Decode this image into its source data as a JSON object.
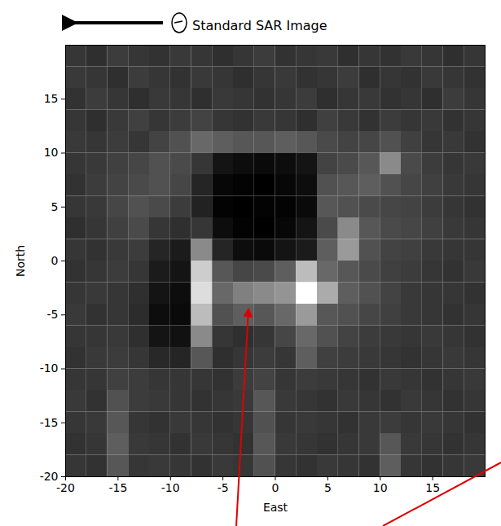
{
  "chart_data": {
    "type": "heatmap",
    "title": "Standard SAR Image",
    "x_label": "East",
    "y_label": "North",
    "xlim": [
      -20,
      20
    ],
    "ylim": [
      -20,
      20
    ],
    "xticks": [
      -20,
      -15,
      -10,
      -5,
      0,
      5,
      10,
      15
    ],
    "yticks": [
      -20,
      -15,
      -10,
      -5,
      0,
      5,
      10,
      15
    ],
    "x": [
      -19,
      -17,
      -15,
      -13,
      -11,
      -9,
      -7,
      -5,
      -3,
      -1,
      1,
      3,
      5,
      7,
      9,
      11,
      13,
      15,
      17,
      19
    ],
    "y": [
      19,
      17,
      15,
      13,
      11,
      9,
      7,
      5,
      3,
      1,
      -1,
      -3,
      -5,
      -7,
      -9,
      -11,
      -13,
      -15,
      -17,
      -19
    ],
    "cells": [
      [
        30,
        28,
        32,
        30,
        29,
        31,
        30,
        28,
        30,
        32,
        29,
        30,
        31,
        28,
        30,
        29,
        31,
        30,
        28,
        30
      ],
      [
        31,
        30,
        28,
        32,
        30,
        29,
        31,
        30,
        28,
        30,
        31,
        29,
        30,
        32,
        28,
        30,
        29,
        31,
        30,
        29
      ],
      [
        29,
        32,
        30,
        28,
        31,
        30,
        28,
        31,
        30,
        29,
        30,
        32,
        28,
        30,
        31,
        29,
        30,
        28,
        32,
        30
      ],
      [
        30,
        28,
        31,
        33,
        30,
        32,
        34,
        30,
        29,
        31,
        30,
        28,
        33,
        31,
        29,
        32,
        30,
        31,
        29,
        30
      ],
      [
        31,
        30,
        32,
        30,
        34,
        38,
        45,
        42,
        40,
        40,
        42,
        40,
        36,
        34,
        35,
        38,
        33,
        30,
        31,
        29
      ],
      [
        30,
        31,
        33,
        35,
        38,
        36,
        30,
        20,
        18,
        17,
        18,
        20,
        34,
        36,
        40,
        55,
        36,
        32,
        30,
        31
      ],
      [
        29,
        32,
        34,
        36,
        38,
        35,
        25,
        16,
        15,
        14,
        16,
        18,
        38,
        40,
        42,
        38,
        35,
        33,
        31,
        30
      ],
      [
        30,
        31,
        35,
        38,
        36,
        32,
        24,
        15,
        14,
        15,
        15,
        17,
        40,
        38,
        36,
        35,
        34,
        32,
        30,
        29
      ],
      [
        28,
        30,
        33,
        36,
        30,
        28,
        30,
        18,
        15,
        14,
        16,
        20,
        36,
        55,
        40,
        36,
        35,
        33,
        31,
        30
      ],
      [
        30,
        29,
        31,
        32,
        25,
        22,
        55,
        25,
        18,
        17,
        20,
        22,
        42,
        60,
        38,
        34,
        33,
        31,
        30,
        30
      ],
      [
        29,
        30,
        32,
        30,
        22,
        20,
        75,
        40,
        35,
        36,
        42,
        70,
        45,
        40,
        36,
        33,
        32,
        30,
        29,
        31
      ],
      [
        30,
        31,
        30,
        28,
        20,
        18,
        80,
        45,
        52,
        55,
        58,
        90,
        65,
        42,
        38,
        34,
        31,
        30,
        30,
        29
      ],
      [
        31,
        29,
        30,
        27,
        18,
        17,
        70,
        38,
        42,
        40,
        45,
        60,
        40,
        38,
        35,
        33,
        31,
        30,
        29,
        30
      ],
      [
        30,
        30,
        31,
        28,
        20,
        19,
        55,
        30,
        28,
        30,
        35,
        45,
        38,
        34,
        32,
        31,
        30,
        31,
        30,
        29
      ],
      [
        29,
        31,
        32,
        30,
        26,
        25,
        40,
        28,
        30,
        32,
        30,
        42,
        33,
        32,
        31,
        30,
        29,
        30,
        31,
        30
      ],
      [
        30,
        30,
        33,
        32,
        30,
        30,
        30,
        29,
        32,
        34,
        30,
        32,
        31,
        30,
        29,
        31,
        30,
        29,
        30,
        31
      ],
      [
        31,
        29,
        38,
        32,
        31,
        30,
        29,
        30,
        31,
        40,
        31,
        30,
        29,
        31,
        30,
        29,
        31,
        30,
        29,
        30
      ],
      [
        30,
        31,
        40,
        30,
        29,
        31,
        30,
        29,
        30,
        38,
        30,
        31,
        30,
        29,
        31,
        32,
        30,
        31,
        30,
        29
      ],
      [
        29,
        30,
        42,
        31,
        30,
        29,
        31,
        30,
        29,
        40,
        31,
        30,
        29,
        30,
        31,
        40,
        31,
        30,
        29,
        30
      ],
      [
        30,
        29,
        40,
        30,
        31,
        30,
        29,
        31,
        30,
        38,
        30,
        29,
        31,
        30,
        29,
        42,
        30,
        29,
        30,
        31
      ]
    ]
  }
}
